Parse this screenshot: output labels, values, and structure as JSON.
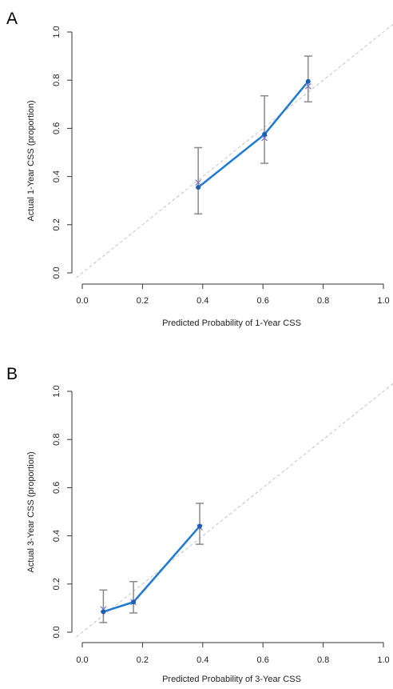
{
  "chart_data": [
    {
      "panel_label": "A",
      "type": "scatter",
      "xlabel": "Predicted Probability of 1-Year CSS",
      "ylabel": "Actual 1-Year CSS (proportion)",
      "xlim": [
        0.0,
        1.0
      ],
      "ylim": [
        0.0,
        1.0
      ],
      "xticks": [
        "0.0",
        "0.2",
        "0.4",
        "0.6",
        "0.8",
        "1.0"
      ],
      "yticks": [
        "0.0",
        "0.2",
        "0.4",
        "0.6",
        "0.8",
        "1.0"
      ],
      "reference_line": "ideal (y = x), light grey dashed",
      "grid": false,
      "series": [
        {
          "x": [
            0.385,
            0.605,
            0.75
          ],
          "observed": [
            0.355,
            0.575,
            0.795
          ],
          "predicted": [
            0.375,
            0.56,
            0.775
          ],
          "ci_lower": [
            0.245,
            0.455,
            0.71
          ],
          "ci_upper": [
            0.52,
            0.735,
            0.9
          ],
          "color": "#1f7ad1"
        }
      ]
    },
    {
      "panel_label": "B",
      "type": "scatter",
      "xlabel": "Predicted Probability of 3-Year CSS",
      "ylabel": "Actual 3-Year CSS (proportion)",
      "xlim": [
        0.0,
        1.0
      ],
      "ylim": [
        0.0,
        1.0
      ],
      "xticks": [
        "0.0",
        "0.2",
        "0.4",
        "0.6",
        "0.8",
        "1.0"
      ],
      "yticks": [
        "0.0",
        "0.2",
        "0.4",
        "0.6",
        "0.8",
        "1.0"
      ],
      "reference_line": "ideal (y = x), light grey dashed",
      "grid": false,
      "series": [
        {
          "x": [
            0.07,
            0.17,
            0.39
          ],
          "observed": [
            0.085,
            0.125,
            0.44
          ],
          "predicted": [
            0.095,
            0.125,
            0.435
          ],
          "ci_lower": [
            0.04,
            0.08,
            0.365
          ],
          "ci_upper": [
            0.175,
            0.21,
            0.535
          ],
          "color": "#1f7ad1"
        }
      ]
    }
  ]
}
